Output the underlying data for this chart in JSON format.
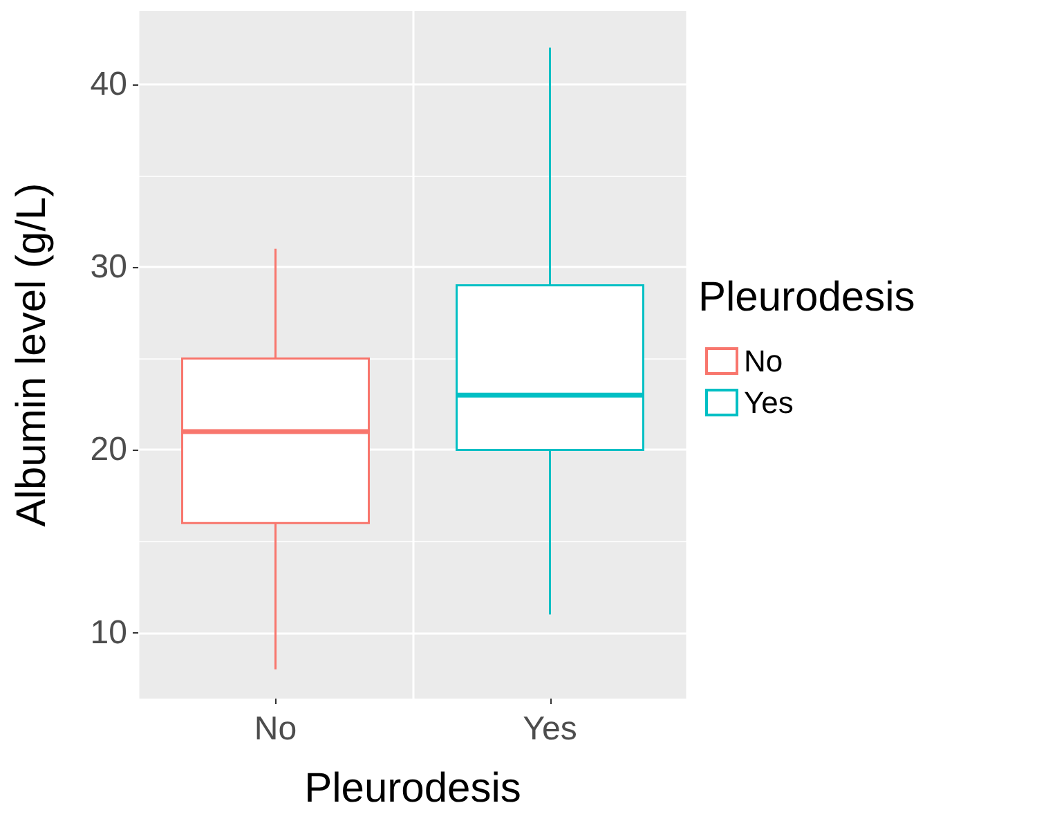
{
  "chart_data": {
    "type": "box",
    "xlabel": "Pleurodesis",
    "ylabel": "Albumin level (g/L)",
    "legend_title": "Pleurodesis",
    "categories": [
      "No",
      "Yes"
    ],
    "series": [
      {
        "name": "No",
        "color": "#f8766d",
        "boxes": [
          {
            "low": 8,
            "q1": 16,
            "median": 21,
            "q3": 25,
            "high": 31
          },
          null
        ]
      },
      {
        "name": "Yes",
        "color": "#00bfc4",
        "boxes": [
          null,
          {
            "low": 11,
            "q1": 20,
            "median": 23,
            "q3": 29,
            "high": 42
          }
        ]
      }
    ],
    "ylim": [
      6.4,
      44
    ],
    "yticks": [
      10,
      20,
      30,
      40
    ],
    "grid": true,
    "legend": "right"
  }
}
